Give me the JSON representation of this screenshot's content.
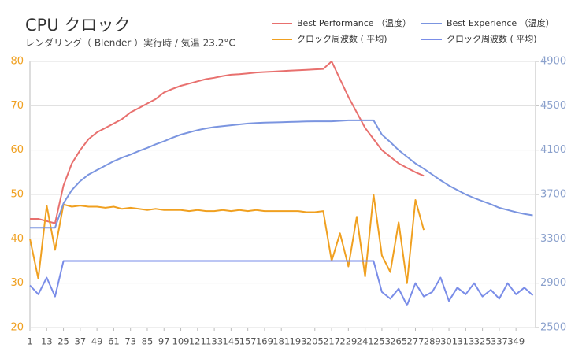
{
  "chart_data": {
    "type": "line",
    "title": "CPU クロック",
    "subtitle": "レンダリング（ Blender ）実行時 / 気温 23.2°C",
    "x": [
      1,
      7,
      13,
      19,
      25,
      31,
      37,
      43,
      49,
      55,
      61,
      67,
      73,
      79,
      85,
      91,
      97,
      103,
      109,
      115,
      121,
      127,
      133,
      139,
      145,
      151,
      157,
      163,
      169,
      175,
      181,
      187,
      193,
      199,
      205,
      211,
      217,
      223,
      229,
      235,
      241,
      247,
      253,
      259,
      265,
      271,
      277,
      283,
      289,
      295,
      301,
      307,
      313,
      319,
      325,
      331,
      337,
      343,
      349,
      355,
      361
    ],
    "xlim": [
      1,
      363
    ],
    "xticks": [
      1,
      13,
      25,
      37,
      49,
      61,
      73,
      85,
      97,
      109,
      121,
      133,
      145,
      157,
      169,
      181,
      193,
      205,
      217,
      229,
      241,
      253,
      265,
      277,
      289,
      301,
      313,
      325,
      337,
      349
    ],
    "ylim": [
      20,
      80
    ],
    "yticks": [
      20,
      30,
      40,
      50,
      60,
      70,
      80
    ],
    "y2lim": [
      2500,
      4900
    ],
    "y2ticks": [
      2500,
      2900,
      3300,
      3700,
      4100,
      4500,
      4900
    ],
    "grid": true,
    "legend": "top-right",
    "y_color": "#f0a020",
    "y2_color": "#8aa0cc",
    "series": [
      {
        "name": "Best Performance （温度）",
        "color": "#e8706e",
        "values": [
          44.5,
          44.5,
          44,
          43.5,
          52,
          57,
          60,
          62.5,
          64,
          65,
          66,
          67,
          68.5,
          69.5,
          70.5,
          71.5,
          73,
          73.8,
          74.5,
          75,
          75.5,
          76,
          76.3,
          76.7,
          77,
          77.1,
          77.3,
          77.5,
          77.6,
          77.7,
          77.8,
          77.9,
          78,
          78.1,
          78.2,
          78.3,
          80,
          76,
          72,
          68.5,
          65,
          62.5,
          60,
          58.5,
          57,
          56,
          55,
          54.2,
          null,
          null,
          null,
          null,
          null,
          null,
          null,
          null,
          null,
          null,
          null,
          null,
          null
        ]
      },
      {
        "name": "クロック周波数 ( 平均)",
        "color": "#f0a020",
        "axis": "y2",
        "values": [
          3300,
          2940,
          3600,
          3200,
          3610,
          3590,
          3600,
          3590,
          3590,
          3580,
          3590,
          3570,
          3580,
          3570,
          3560,
          3570,
          3560,
          3560,
          3560,
          3550,
          3560,
          3550,
          3550,
          3560,
          3550,
          3560,
          3550,
          3560,
          3550,
          3550,
          3550,
          3550,
          3550,
          3540,
          3540,
          3550,
          3100,
          3350,
          3050,
          3500,
          2960,
          3700,
          3150,
          3000,
          3450,
          2900,
          3650,
          3380,
          null,
          null,
          null,
          null,
          null,
          null,
          null,
          null,
          null,
          null,
          null,
          null,
          null
        ]
      },
      {
        "name": "Best Experience （温度）",
        "color": "#7b95e0",
        "values": [
          42.5,
          42.5,
          42.5,
          42.5,
          48,
          51,
          53,
          54.5,
          55.5,
          56.5,
          57.5,
          58.3,
          59,
          59.8,
          60.5,
          61.3,
          62,
          62.8,
          63.5,
          64,
          64.5,
          64.9,
          65.2,
          65.4,
          65.6,
          65.8,
          66,
          66.1,
          66.2,
          66.25,
          66.3,
          66.35,
          66.4,
          66.45,
          66.5,
          66.5,
          66.5,
          66.6,
          66.7,
          66.7,
          66.7,
          66.7,
          63.5,
          61.8,
          60,
          58.5,
          57,
          55.8,
          54.5,
          53.2,
          52,
          51,
          50,
          49.2,
          48.5,
          47.8,
          47,
          46.5,
          46,
          45.6,
          45.3
        ]
      },
      {
        "name": "クロック周波数 ( 平均)",
        "color": "#7a8de8",
        "axis": "y2",
        "values": [
          2880,
          2800,
          2950,
          2780,
          3100,
          3100,
          3100,
          3100,
          3100,
          3100,
          3100,
          3100,
          3100,
          3100,
          3100,
          3100,
          3100,
          3100,
          3100,
          3100,
          3100,
          3100,
          3100,
          3100,
          3100,
          3100,
          3100,
          3100,
          3100,
          3100,
          3100,
          3100,
          3100,
          3100,
          3100,
          3100,
          3100,
          3100,
          3100,
          3100,
          3100,
          3100,
          2820,
          2760,
          2850,
          2700,
          2900,
          2780,
          2820,
          2950,
          2740,
          2860,
          2800,
          2900,
          2780,
          2840,
          2760,
          2900,
          2800,
          2860,
          2790
        ]
      }
    ]
  }
}
